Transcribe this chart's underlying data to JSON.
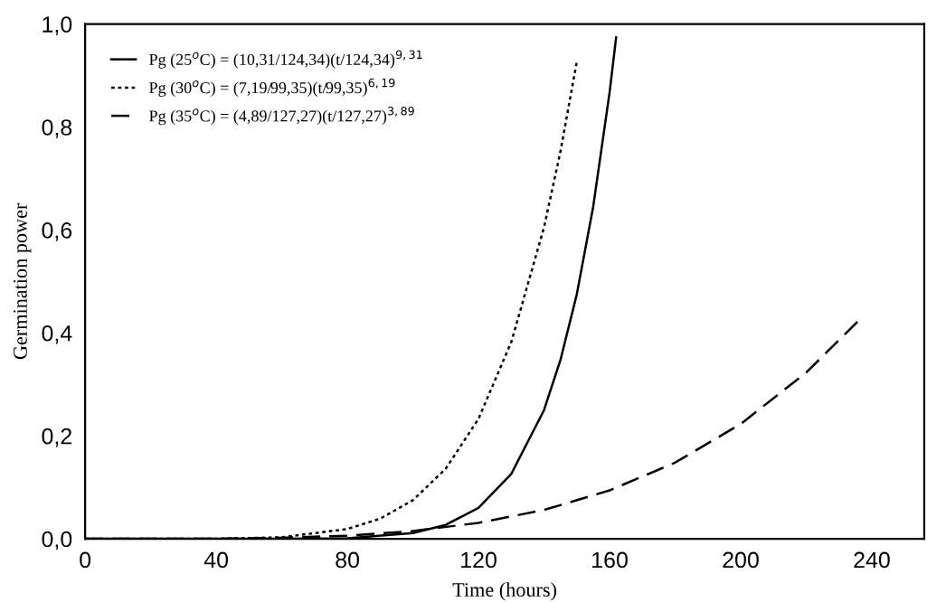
{
  "chart_data": {
    "type": "line",
    "xlabel": "Time (hours)",
    "ylabel": "Germination power",
    "xlim": [
      0,
      256
    ],
    "xticks": [
      0,
      40,
      80,
      120,
      160,
      200,
      240
    ],
    "ylim": [
      0,
      1
    ],
    "yticks": [
      {
        "value": 0,
        "label": "0,0"
      },
      {
        "value": 0.2,
        "label": "0,2"
      },
      {
        "value": 0.4,
        "label": "0,4"
      },
      {
        "value": 0.6,
        "label": "0,6"
      },
      {
        "value": 0.8,
        "label": "0,8"
      },
      {
        "value": 1,
        "label": "1,0"
      }
    ],
    "legend": "top left",
    "grid": false,
    "marker": "none",
    "series": [
      {
        "name": "Pg (25$^{o}$C) = (10,31/124,34)(t/124,34)$^{9,31}$",
        "color": "#000000",
        "line_style": "solid",
        "x": [
          0,
          40,
          60,
          80,
          100,
          110,
          120,
          130,
          140,
          145,
          150,
          155,
          160,
          162
        ],
        "values": [
          0,
          0,
          0,
          0.001,
          0.011,
          0.027,
          0.06,
          0.126,
          0.25,
          0.347,
          0.475,
          0.645,
          0.867,
          0.974
        ]
      },
      {
        "name": "Pg (30$^{o}$C) = (7,19/99,35)(t/99,35)$^{6,19}$",
        "color": "#000000",
        "line_style": "dotted",
        "x": [
          0,
          40,
          60,
          80,
          90,
          100,
          110,
          120,
          130,
          140,
          145,
          150
        ],
        "values": [
          0,
          0,
          0.003,
          0.019,
          0.039,
          0.075,
          0.136,
          0.233,
          0.382,
          0.605,
          0.752,
          0.927
        ]
      },
      {
        "name": "Pg (35$^{o}$C) = (4,89/127,27)(t/127,27)$^{3,89}$",
        "color": "#000000",
        "line_style": "dashed",
        "x": [
          0,
          40,
          60,
          80,
          100,
          120,
          140,
          160,
          180,
          200,
          220,
          236
        ],
        "values": [
          0,
          0,
          0.002,
          0.006,
          0.015,
          0.031,
          0.056,
          0.094,
          0.148,
          0.223,
          0.323,
          0.424
        ]
      }
    ]
  }
}
